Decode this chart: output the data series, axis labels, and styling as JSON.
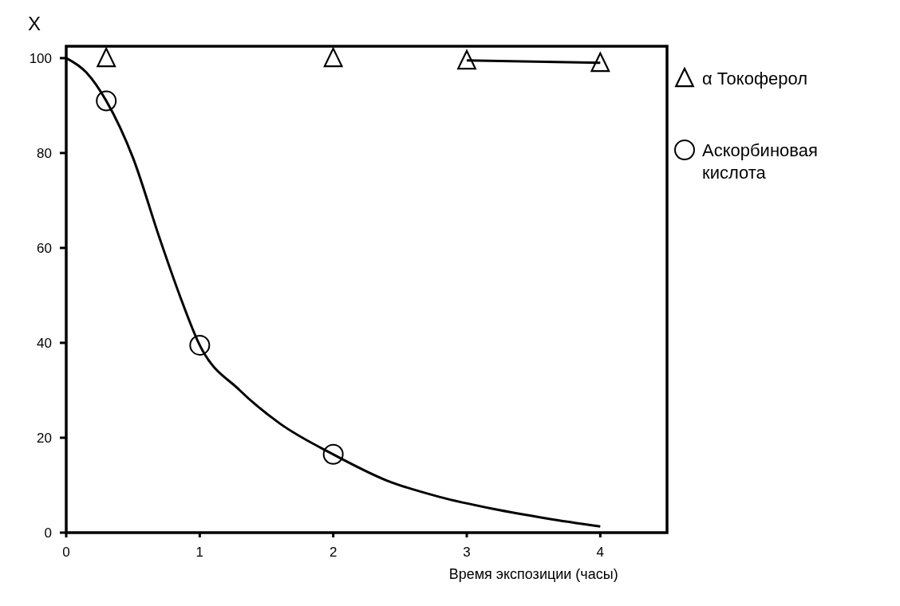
{
  "chart_data": {
    "type": "line",
    "ylabel": "X",
    "xlabel": "Время экспозиции (часы)",
    "xlim": [
      0,
      4.5
    ],
    "xticks": [
      0,
      1,
      2,
      3,
      4
    ],
    "ylim": [
      0,
      102.5
    ],
    "yticks": [
      0,
      20,
      40,
      60,
      80,
      100
    ],
    "grid": false,
    "legend": "right",
    "series": [
      {
        "name": "α Токоферол",
        "type": "scatter",
        "marker": "triangle",
        "color": "#000000",
        "x": [
          0.3,
          2,
          3,
          4
        ],
        "values": [
          100,
          100,
          99.5,
          99
        ]
      },
      {
        "marker": "none",
        "color": "#000000",
        "x": [
          3,
          4
        ],
        "values": [
          99.5,
          99
        ]
      },
      {
        "name": "Аскорбиновая кислота",
        "type": "scatter",
        "marker": "circle",
        "color": "#000000",
        "x": [
          0.3,
          1,
          2
        ],
        "values": [
          91,
          39.5,
          16.5
        ]
      },
      {
        "marker": "none",
        "color": "#000000",
        "x": [
          0,
          0.15,
          0.3,
          0.5,
          0.7,
          0.85,
          1,
          1.3,
          1.6,
          2,
          2.4,
          2.8,
          3.2,
          3.6,
          4
        ],
        "values": [
          100,
          97,
          91,
          79,
          62,
          50,
          39.5,
          30,
          23,
          16.5,
          11,
          7.5,
          5,
          3,
          1.3
        ]
      }
    ]
  }
}
